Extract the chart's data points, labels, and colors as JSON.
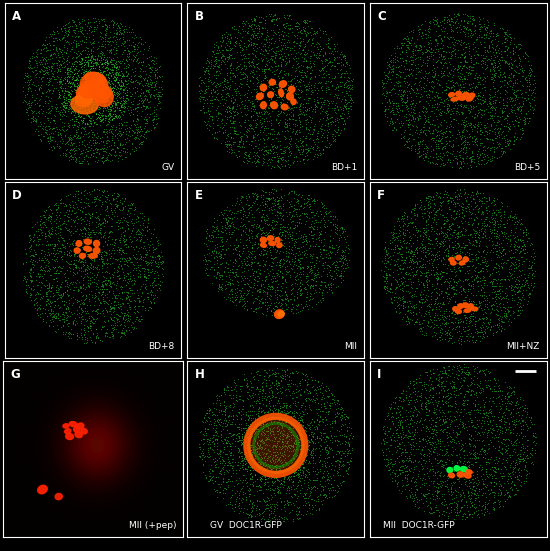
{
  "figsize": [
    5.5,
    5.51
  ],
  "dpi": 100,
  "background_color": "#000000",
  "grid_rows": 3,
  "grid_cols": 3,
  "border_color": "#ffffff",
  "border_lw": 0.8,
  "panel_labels": [
    "A",
    "B",
    "C",
    "D",
    "E",
    "F",
    "G",
    "H",
    "I"
  ],
  "panel_sublabels": [
    "GV",
    "BD+1",
    "BD+5",
    "BD+8",
    "MII",
    "MII+NZ",
    "MII (+pep)",
    "GV  DOC1R-GFP",
    "MII  DOC1R-GFP"
  ]
}
